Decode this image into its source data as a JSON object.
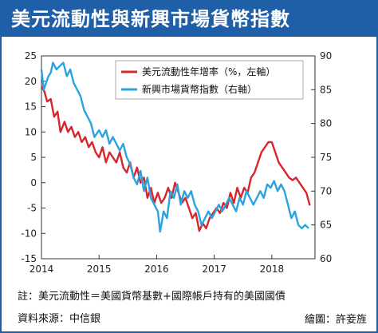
{
  "title": "美元流動性與新興市場貨幣指數",
  "notes": {
    "footnote": "註：美元流動性＝美國貨幣基數+國際帳戶持有的美國國債",
    "source": "資料來源：中信銀",
    "credit": "繪圖：許妾旌"
  },
  "colors": {
    "brand": "#1f5fa8",
    "series_red": "#d7262b",
    "series_blue": "#2aa3de"
  },
  "chart_data": {
    "type": "line",
    "x_ticks": [
      "2014",
      "2015",
      "2016",
      "2017",
      "2018"
    ],
    "y_left_ticks": [
      "25",
      "20",
      "15",
      "10",
      "5",
      "0",
      "-5",
      "-10",
      "-15"
    ],
    "y_right_ticks": [
      "90",
      "85",
      "80",
      "75",
      "70",
      "65",
      "60"
    ],
    "ylim_left": [
      -15,
      25
    ],
    "ylim_right": [
      60,
      90
    ],
    "xlim": [
      2014.0,
      2018.75
    ],
    "grid": false,
    "legend_position": "top-right",
    "series": [
      {
        "name": "美元流動性年增率（%，左軸）",
        "axis": "left",
        "color": "#d7262b",
        "points": [
          [
            2014.0,
            19
          ],
          [
            2014.05,
            18
          ],
          [
            2014.1,
            16
          ],
          [
            2014.16,
            16.5
          ],
          [
            2014.22,
            13
          ],
          [
            2014.28,
            14
          ],
          [
            2014.33,
            10
          ],
          [
            2014.4,
            12
          ],
          [
            2014.46,
            10
          ],
          [
            2014.52,
            11
          ],
          [
            2014.58,
            9
          ],
          [
            2014.64,
            10
          ],
          [
            2014.7,
            8
          ],
          [
            2014.76,
            9
          ],
          [
            2014.82,
            7
          ],
          [
            2014.88,
            8
          ],
          [
            2014.94,
            6
          ],
          [
            2015.0,
            5
          ],
          [
            2015.06,
            7
          ],
          [
            2015.12,
            4
          ],
          [
            2015.18,
            6
          ],
          [
            2015.24,
            5
          ],
          [
            2015.3,
            4
          ],
          [
            2015.36,
            6
          ],
          [
            2015.42,
            3
          ],
          [
            2015.48,
            2
          ],
          [
            2015.54,
            4
          ],
          [
            2015.6,
            1
          ],
          [
            2015.66,
            3
          ],
          [
            2015.72,
            0
          ],
          [
            2015.78,
            1
          ],
          [
            2015.84,
            -3
          ],
          [
            2015.9,
            -1
          ],
          [
            2015.96,
            -4
          ],
          [
            2016.02,
            -2
          ],
          [
            2016.08,
            -4
          ],
          [
            2016.14,
            -3
          ],
          [
            2016.2,
            -1
          ],
          [
            2016.26,
            -3
          ],
          [
            2016.32,
            0
          ],
          [
            2016.38,
            -2
          ],
          [
            2016.44,
            -4
          ],
          [
            2016.5,
            -3
          ],
          [
            2016.56,
            -5
          ],
          [
            2016.62,
            -7
          ],
          [
            2016.68,
            -6
          ],
          [
            2016.74,
            -9.5
          ],
          [
            2016.8,
            -8
          ],
          [
            2016.86,
            -9
          ],
          [
            2016.92,
            -7
          ],
          [
            2016.98,
            -6
          ],
          [
            2017.04,
            -5
          ],
          [
            2017.1,
            -6
          ],
          [
            2017.16,
            -4
          ],
          [
            2017.22,
            -5
          ],
          [
            2017.28,
            -2
          ],
          [
            2017.34,
            -4
          ],
          [
            2017.4,
            -1
          ],
          [
            2017.46,
            -3
          ],
          [
            2017.52,
            -1
          ],
          [
            2017.58,
            -2
          ],
          [
            2017.64,
            1
          ],
          [
            2017.7,
            2
          ],
          [
            2017.76,
            4
          ],
          [
            2017.82,
            6
          ],
          [
            2017.88,
            7
          ],
          [
            2017.94,
            8
          ],
          [
            2018.0,
            8
          ],
          [
            2018.06,
            6
          ],
          [
            2018.12,
            4
          ],
          [
            2018.18,
            3
          ],
          [
            2018.24,
            2
          ],
          [
            2018.3,
            1
          ],
          [
            2018.36,
            0.5
          ],
          [
            2018.42,
            1
          ],
          [
            2018.48,
            0
          ],
          [
            2018.54,
            -1
          ],
          [
            2018.6,
            -2
          ],
          [
            2018.66,
            -4.5
          ]
        ]
      },
      {
        "name": "新興市場貨幣指數（右軸）",
        "axis": "right",
        "color": "#2aa3de",
        "points": [
          [
            2014.0,
            88
          ],
          [
            2014.04,
            85
          ],
          [
            2014.08,
            86
          ],
          [
            2014.12,
            87
          ],
          [
            2014.16,
            87.5
          ],
          [
            2014.2,
            89
          ],
          [
            2014.26,
            88
          ],
          [
            2014.32,
            88.5
          ],
          [
            2014.38,
            89
          ],
          [
            2014.44,
            87
          ],
          [
            2014.5,
            88
          ],
          [
            2014.56,
            86
          ],
          [
            2014.62,
            85
          ],
          [
            2014.68,
            84
          ],
          [
            2014.74,
            82
          ],
          [
            2014.8,
            81
          ],
          [
            2014.86,
            80
          ],
          [
            2014.92,
            78
          ],
          [
            2015.0,
            79
          ],
          [
            2015.06,
            78
          ],
          [
            2015.12,
            79
          ],
          [
            2015.18,
            77
          ],
          [
            2015.24,
            78
          ],
          [
            2015.3,
            77
          ],
          [
            2015.36,
            76
          ],
          [
            2015.42,
            77
          ],
          [
            2015.48,
            75
          ],
          [
            2015.54,
            74
          ],
          [
            2015.6,
            72
          ],
          [
            2015.66,
            71
          ],
          [
            2015.72,
            73
          ],
          [
            2015.78,
            70
          ],
          [
            2015.84,
            72
          ],
          [
            2015.9,
            69
          ],
          [
            2015.96,
            68
          ],
          [
            2016.02,
            67
          ],
          [
            2016.06,
            64
          ],
          [
            2016.12,
            67
          ],
          [
            2016.18,
            66
          ],
          [
            2016.24,
            70
          ],
          [
            2016.3,
            69
          ],
          [
            2016.36,
            71
          ],
          [
            2016.42,
            68
          ],
          [
            2016.48,
            70
          ],
          [
            2016.54,
            69
          ],
          [
            2016.6,
            70
          ],
          [
            2016.66,
            68
          ],
          [
            2016.72,
            67
          ],
          [
            2016.78,
            65
          ],
          [
            2016.84,
            66
          ],
          [
            2016.9,
            67
          ],
          [
            2016.96,
            66
          ],
          [
            2017.02,
            67
          ],
          [
            2017.08,
            68
          ],
          [
            2017.14,
            67
          ],
          [
            2017.2,
            68
          ],
          [
            2017.26,
            69
          ],
          [
            2017.32,
            68
          ],
          [
            2017.38,
            67
          ],
          [
            2017.44,
            69
          ],
          [
            2017.5,
            68
          ],
          [
            2017.56,
            70
          ],
          [
            2017.62,
            69
          ],
          [
            2017.68,
            68
          ],
          [
            2017.74,
            69
          ],
          [
            2017.8,
            70
          ],
          [
            2017.86,
            69
          ],
          [
            2017.92,
            71
          ],
          [
            2017.98,
            70.5
          ],
          [
            2018.04,
            71.5
          ],
          [
            2018.1,
            70
          ],
          [
            2018.16,
            71
          ],
          [
            2018.22,
            70
          ],
          [
            2018.28,
            68
          ],
          [
            2018.34,
            66
          ],
          [
            2018.4,
            67
          ],
          [
            2018.46,
            65
          ],
          [
            2018.52,
            64.5
          ],
          [
            2018.58,
            65
          ],
          [
            2018.64,
            64.5
          ]
        ]
      }
    ]
  }
}
